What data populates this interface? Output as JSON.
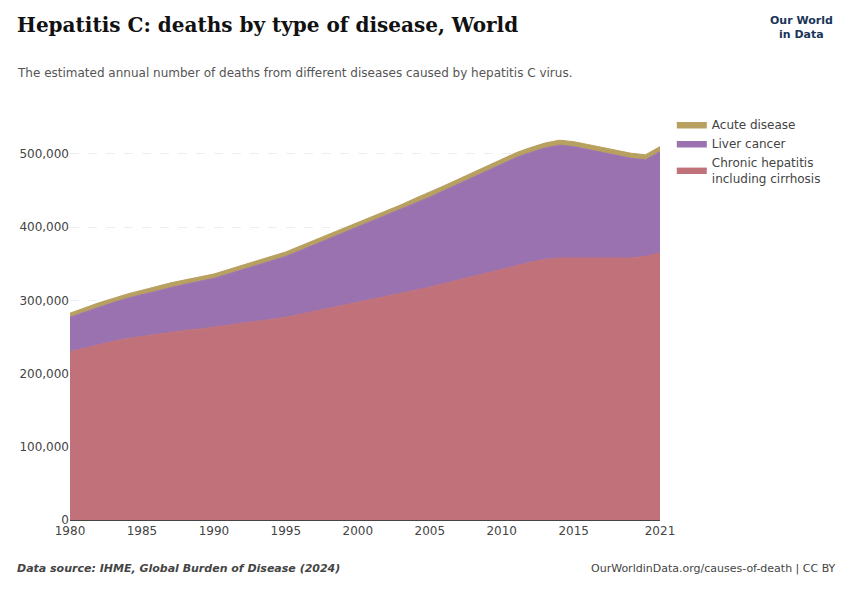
{
  "chart_data": {
    "type": "area",
    "stacked": true,
    "title": "Hepatitis C: deaths by type of disease, World",
    "subtitle": "The estimated annual number of deaths from different diseases caused by hepatitis C virus.",
    "annotations": [
      "Data source: IHME, Global Burden of Disease (2024)",
      "OurWorldinData.org/causes-of-death | CC BY",
      "Our World",
      "in Data"
    ],
    "x": [
      1980,
      1981,
      1982,
      1983,
      1984,
      1985,
      1986,
      1987,
      1988,
      1989,
      1990,
      1991,
      1992,
      1993,
      1994,
      1995,
      1996,
      1997,
      1998,
      1999,
      2000,
      2001,
      2002,
      2003,
      2004,
      2005,
      2006,
      2007,
      2008,
      2009,
      2010,
      2011,
      2012,
      2013,
      2014,
      2015,
      2016,
      2017,
      2018,
      2019,
      2020,
      2021
    ],
    "series": [
      {
        "name": "Chronic hepatitis\nincluding cirrhosis",
        "color": "#c0717a",
        "values": [
          230000,
          235000,
          240000,
          244000,
          248000,
          251000,
          254000,
          257000,
          259000,
          261000,
          263000,
          266000,
          269000,
          271000,
          274000,
          277000,
          281000,
          285000,
          289000,
          293000,
          297000,
          301000,
          305000,
          309000,
          314000,
          318000,
          323000,
          328000,
          333000,
          338000,
          343000,
          348000,
          352000,
          356000,
          358000,
          358000,
          358000,
          358000,
          358000,
          358000,
          360000,
          365000
        ]
      },
      {
        "name": "Liver cancer",
        "color": "#9b72b0",
        "values": [
          47000,
          49000,
          51000,
          53000,
          55000,
          57000,
          59000,
          61000,
          63000,
          65000,
          67000,
          70000,
          73000,
          76000,
          79000,
          83000,
          87000,
          91000,
          95000,
          99000,
          103000,
          107000,
          111000,
          115000,
          119000,
          123000,
          127000,
          131000,
          135000,
          139000,
          143000,
          147000,
          150000,
          152000,
          154000,
          152000,
          148000,
          144000,
          140000,
          136000,
          132000,
          138000
        ]
      },
      {
        "name": "Acute disease",
        "color": "#b8a060",
        "values": [
          5500,
          5600,
          5700,
          5700,
          5800,
          5800,
          5900,
          5900,
          6000,
          6000,
          6000,
          6100,
          6100,
          6200,
          6200,
          6200,
          6300,
          6300,
          6300,
          6400,
          6400,
          6400,
          6500,
          6500,
          6500,
          6600,
          6600,
          6600,
          6700,
          6700,
          6700,
          6700,
          6700,
          6800,
          6800,
          6800,
          6800,
          6800,
          6800,
          6900,
          6900,
          7000
        ]
      }
    ],
    "xlim": [
      1980,
      2021
    ],
    "xticks": [
      1980,
      1985,
      1990,
      1995,
      2000,
      2005,
      2010,
      2015,
      2021
    ],
    "ylim": [
      0,
      560000
    ],
    "yticks": [
      0,
      {
        "value": 100000,
        "label": "100,000"
      },
      {
        "value": 200000,
        "label": "200,000"
      },
      {
        "value": 300000,
        "label": "300,000"
      },
      {
        "value": 400000,
        "label": "400,000"
      },
      {
        "value": 500000,
        "label": "500,000"
      }
    ],
    "grid": "y",
    "legend": "right"
  }
}
